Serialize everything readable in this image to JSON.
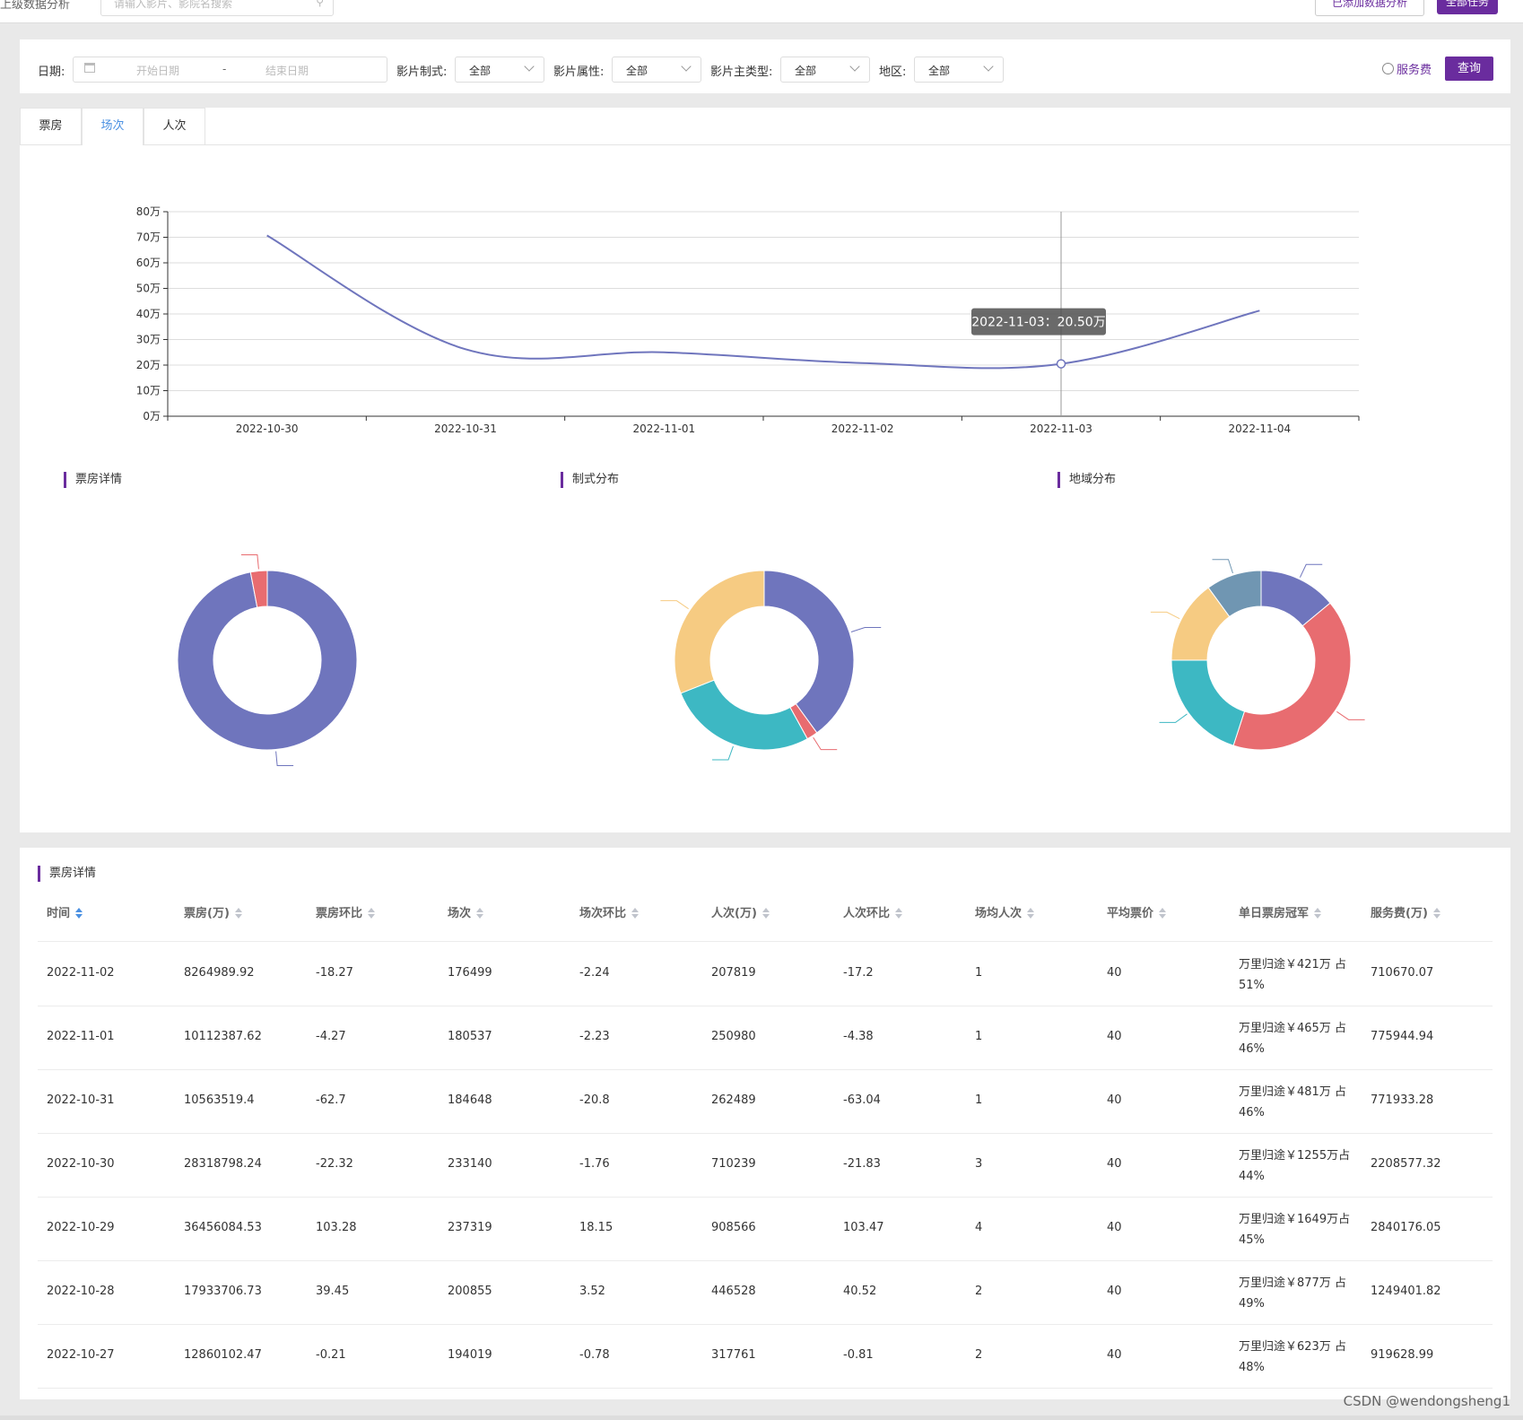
{
  "topbar": {
    "left_text": "上级数据分析",
    "search_placeholder": "请输入影片、影院名搜索",
    "btn1": "已添加数据分析",
    "btn2": "全部任务"
  },
  "filter": {
    "date_label": "日期:",
    "start_placeholder": "开始日期",
    "sep": "-",
    "end_placeholder": "结束日期",
    "format_label": "影片制式:",
    "format_value": "全部",
    "attr_label": "影片属性:",
    "attr_value": "全部",
    "type_label": "影片主类型:",
    "type_value": "全部",
    "region_label": "地区:",
    "region_value": "全部",
    "service_fee_label": "服务费",
    "query_label": "查询"
  },
  "tabs": [
    {
      "label": "票房"
    },
    {
      "label": "场次"
    },
    {
      "label": "人次"
    }
  ],
  "chart_data": [
    {
      "type": "line",
      "x": [
        "2022-10-30",
        "2022-10-31",
        "2022-11-01",
        "2022-11-02",
        "2022-11-03",
        "2022-11-04"
      ],
      "series": [
        {
          "values": [
            70.7,
            26.2,
            25.0,
            20.8,
            20.5,
            41.3
          ]
        }
      ],
      "ylim": [
        0,
        80
      ],
      "yticks": [
        "0万",
        "10万",
        "20万",
        "30万",
        "40万",
        "50万",
        "60万",
        "70万",
        "80万"
      ],
      "grid": true,
      "tooltip": "2022-11-03：20.50万",
      "color": "#6f75bd"
    },
    {
      "type": "pie",
      "title": "票房详情",
      "donut": true,
      "values": [
        97,
        3
      ],
      "colors": [
        "#6f75bd",
        "#e86c70"
      ]
    },
    {
      "type": "pie",
      "title": "制式分布",
      "donut": true,
      "values": [
        40,
        2,
        27,
        31
      ],
      "colors": [
        "#6f75bd",
        "#e86c70",
        "#3db8c3",
        "#f6cb82"
      ]
    },
    {
      "type": "pie",
      "title": "地域分布",
      "donut": true,
      "values": [
        14,
        41,
        20,
        15,
        10
      ],
      "colors": [
        "#6f75bd",
        "#e86c70",
        "#3db8c3",
        "#f6cb82",
        "#7096b2"
      ]
    }
  ],
  "table": {
    "title": "票房详情",
    "columns": [
      "时间",
      "票房(万)",
      "票房环比",
      "场次",
      "场次环比",
      "人次(万)",
      "人次环比",
      "场均人次",
      "平均票价",
      "单日票房冠军",
      "服务费(万)"
    ],
    "rows": [
      [
        "2022-11-02",
        "8264989.92",
        "-18.27",
        "176499",
        "-2.24",
        "207819",
        "-17.2",
        "1",
        "40",
        "万里归途￥421万 占51%",
        "710670.07"
      ],
      [
        "2022-11-01",
        "10112387.62",
        "-4.27",
        "180537",
        "-2.23",
        "250980",
        "-4.38",
        "1",
        "40",
        "万里归途￥465万 占46%",
        "775944.94"
      ],
      [
        "2022-10-31",
        "10563519.4",
        "-62.7",
        "184648",
        "-20.8",
        "262489",
        "-63.04",
        "1",
        "40",
        "万里归途￥481万 占46%",
        "771933.28"
      ],
      [
        "2022-10-30",
        "28318798.24",
        "-22.32",
        "233140",
        "-1.76",
        "710239",
        "-21.83",
        "3",
        "40",
        "万里归途￥1255万占44%",
        "2208577.32"
      ],
      [
        "2022-10-29",
        "36456084.53",
        "103.28",
        "237319",
        "18.15",
        "908566",
        "103.47",
        "4",
        "40",
        "万里归途￥1649万占45%",
        "2840176.05"
      ],
      [
        "2022-10-28",
        "17933706.73",
        "39.45",
        "200855",
        "3.52",
        "446528",
        "40.52",
        "2",
        "40",
        "万里归途￥877万 占49%",
        "1249401.82"
      ],
      [
        "2022-10-27",
        "12860102.47",
        "-0.21",
        "194019",
        "-0.78",
        "317761",
        "-0.81",
        "2",
        "40",
        "万里归途￥623万 占48%",
        "919628.99"
      ]
    ]
  },
  "watermark": "CSDN @wendongsheng1"
}
